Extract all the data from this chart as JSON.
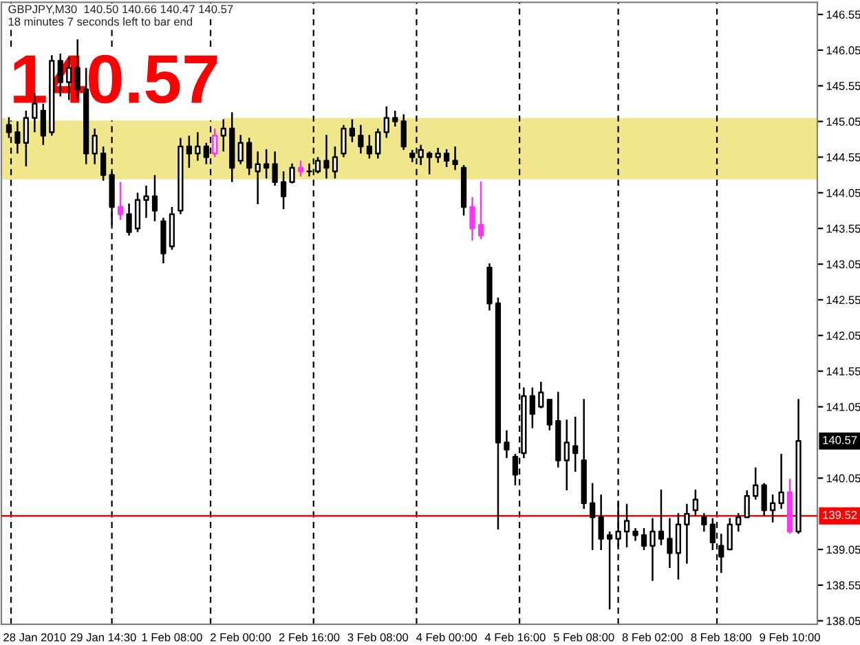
{
  "chart_data": {
    "type": "candlestick",
    "title": "GBPJPY,M30  140.50 140.66 140.47 140.57",
    "subtitle": "18 minutes 7 seconds left to bar end",
    "annotations": [
      "140.57",
      {
        "text": "140.57",
        "y": 140.57
      }
    ],
    "categories": [
      null,
      null,
      null,
      "28 Jan 2010",
      null,
      null,
      null,
      null,
      null,
      null,
      null,
      "29 Jan 14:30",
      null,
      null,
      null,
      null,
      null,
      null,
      null,
      "1 Feb 08:00",
      null,
      null,
      null,
      null,
      null,
      null,
      null,
      "2 Feb 00:00",
      null,
      null,
      null,
      null,
      null,
      null,
      null,
      "2 Feb 16:00",
      null,
      null,
      null,
      null,
      null,
      null,
      null,
      "3 Feb 08:00",
      null,
      null,
      null,
      null,
      null,
      null,
      null,
      "4 Feb 00:00",
      null,
      null,
      null,
      null,
      null,
      null,
      null,
      "4 Feb 16:00",
      null,
      null,
      null,
      null,
      null,
      null,
      null,
      "5 Feb 08:00",
      null,
      null,
      null,
      null,
      null,
      null,
      null,
      "8 Feb 02:00",
      null,
      null,
      null,
      null,
      null,
      null,
      null,
      "8 Feb 18:00",
      null,
      null,
      null,
      null,
      null,
      null,
      null,
      "9 Feb 10:00",
      null
    ],
    "ohlc": [
      [
        145.0,
        145.11,
        144.82,
        144.9
      ],
      [
        144.9,
        145.05,
        144.6,
        144.75
      ],
      [
        144.75,
        145.2,
        144.42,
        145.1
      ],
      [
        145.1,
        145.45,
        144.9,
        145.3
      ],
      [
        145.2,
        145.3,
        144.72,
        144.85
      ],
      [
        144.9,
        145.98,
        144.85,
        145.9
      ],
      [
        145.9,
        146.0,
        145.4,
        145.6
      ],
      [
        145.6,
        145.95,
        145.35,
        145.8
      ],
      [
        145.8,
        146.2,
        145.35,
        145.5
      ],
      [
        145.5,
        145.8,
        144.45,
        144.6
      ],
      [
        144.6,
        144.95,
        144.45,
        144.85
      ],
      [
        144.6,
        144.7,
        144.22,
        144.3
      ],
      [
        144.3,
        144.35,
        143.6,
        143.85
      ],
      [
        143.85,
        144.2,
        143.67,
        143.75
      ],
      [
        143.75,
        143.9,
        143.45,
        143.5
      ],
      [
        143.55,
        144.05,
        143.5,
        143.95
      ],
      [
        143.95,
        144.15,
        143.7,
        144.0
      ],
      [
        144.0,
        144.3,
        143.65,
        143.8
      ],
      [
        143.65,
        143.7,
        143.06,
        143.2
      ],
      [
        143.3,
        143.85,
        143.25,
        143.75
      ],
      [
        143.8,
        144.82,
        143.75,
        144.7
      ],
      [
        144.7,
        144.85,
        144.4,
        144.6
      ],
      [
        144.6,
        144.9,
        144.5,
        144.7
      ],
      [
        144.7,
        144.75,
        144.45,
        144.55
      ],
      [
        144.6,
        144.95,
        144.55,
        144.85
      ],
      [
        144.85,
        145.08,
        144.63,
        144.95
      ],
      [
        144.95,
        145.18,
        144.2,
        144.4
      ],
      [
        144.5,
        144.86,
        144.45,
        144.75
      ],
      [
        144.75,
        144.82,
        144.3,
        144.4
      ],
      [
        144.35,
        144.63,
        143.89,
        144.45
      ],
      [
        144.45,
        144.66,
        144.25,
        144.4
      ],
      [
        144.45,
        144.63,
        144.15,
        144.2
      ],
      [
        144.2,
        144.35,
        143.82,
        144.0
      ],
      [
        144.2,
        144.46,
        144.18,
        144.4
      ],
      [
        144.4,
        144.5,
        144.28,
        144.35
      ],
      [
        144.35,
        144.46,
        144.28,
        144.35
      ],
      [
        144.35,
        144.55,
        144.32,
        144.5
      ],
      [
        144.5,
        144.86,
        144.25,
        144.4
      ],
      [
        144.35,
        144.7,
        144.25,
        144.55
      ],
      [
        144.6,
        145.0,
        144.55,
        144.95
      ],
      [
        144.95,
        145.08,
        144.76,
        144.85
      ],
      [
        144.85,
        145.0,
        144.6,
        144.7
      ],
      [
        144.7,
        144.86,
        144.53,
        144.6
      ],
      [
        144.6,
        144.95,
        144.53,
        144.9
      ],
      [
        144.9,
        145.26,
        144.82,
        145.1
      ],
      [
        145.1,
        145.2,
        144.98,
        145.05
      ],
      [
        145.05,
        145.15,
        144.65,
        144.7
      ],
      [
        144.6,
        144.65,
        144.48,
        144.55
      ],
      [
        144.55,
        144.72,
        144.44,
        144.65
      ],
      [
        144.6,
        144.63,
        144.31,
        144.55
      ],
      [
        144.55,
        144.68,
        144.47,
        144.6
      ],
      [
        144.6,
        144.66,
        144.41,
        144.5
      ],
      [
        144.5,
        144.7,
        144.37,
        144.45
      ],
      [
        144.4,
        144.44,
        143.73,
        143.85
      ],
      [
        143.85,
        143.99,
        143.38,
        143.55
      ],
      [
        143.6,
        144.21,
        143.4,
        143.45
      ],
      [
        143.0,
        143.06,
        142.4,
        142.5
      ],
      [
        142.5,
        142.58,
        139.33,
        140.55
      ],
      [
        140.55,
        140.72,
        140.33,
        140.45
      ],
      [
        140.35,
        140.39,
        139.95,
        140.1
      ],
      [
        140.4,
        141.32,
        140.33,
        141.2
      ],
      [
        141.2,
        141.32,
        140.75,
        140.95
      ],
      [
        141.05,
        141.4,
        141.03,
        141.25
      ],
      [
        141.15,
        141.16,
        140.72,
        140.8
      ],
      [
        140.85,
        141.26,
        140.2,
        140.3
      ],
      [
        140.3,
        140.87,
        139.88,
        140.55
      ],
      [
        140.5,
        140.91,
        140.14,
        140.4
      ],
      [
        140.3,
        141.16,
        139.62,
        139.7
      ],
      [
        139.7,
        139.98,
        139.04,
        139.5
      ],
      [
        139.5,
        139.82,
        139.04,
        139.2
      ],
      [
        139.25,
        139.3,
        138.21,
        139.2
      ],
      [
        139.2,
        139.72,
        139.08,
        139.3
      ],
      [
        139.3,
        139.69,
        139.08,
        139.45
      ],
      [
        139.3,
        139.35,
        139.17,
        139.25
      ],
      [
        139.25,
        139.35,
        139.04,
        139.1
      ],
      [
        139.1,
        139.49,
        138.61,
        139.3
      ],
      [
        139.3,
        139.89,
        139.11,
        139.2
      ],
      [
        139.2,
        139.49,
        138.79,
        139.0
      ],
      [
        139.0,
        139.56,
        138.63,
        139.4
      ],
      [
        139.4,
        139.69,
        138.85,
        139.55
      ],
      [
        139.6,
        139.89,
        139.52,
        139.75
      ],
      [
        139.5,
        139.56,
        139.3,
        139.4
      ],
      [
        139.4,
        139.49,
        139.04,
        139.15
      ],
      [
        139.1,
        139.27,
        138.72,
        138.95
      ],
      [
        139.05,
        139.49,
        139.04,
        139.4
      ],
      [
        139.4,
        139.56,
        139.3,
        139.5
      ],
      [
        139.5,
        139.88,
        139.49,
        139.8
      ],
      [
        139.8,
        140.2,
        139.75,
        139.95
      ],
      [
        139.95,
        139.98,
        139.52,
        139.6
      ],
      [
        139.6,
        139.82,
        139.43,
        139.7
      ],
      [
        139.7,
        140.39,
        139.62,
        139.85
      ],
      [
        139.85,
        140.04,
        139.27,
        139.3
      ],
      [
        139.3,
        141.16,
        139.27,
        140.57
      ]
    ],
    "colors": [
      "#000000",
      "#000000",
      "#000000",
      "#000000",
      "#000000",
      "#000000",
      "#000000",
      "#000000",
      "#000000",
      "#000000",
      "#000000",
      "#000000",
      "#000000",
      "#ff33ff",
      "#000000",
      "#000000",
      "#000000",
      "#000000",
      "#000000",
      "#000000",
      "#000000",
      "#000000",
      "#000000",
      "#000000",
      "#ff33ff",
      "#000000",
      "#000000",
      "#000000",
      "#000000",
      "#000000",
      "#000000",
      "#000000",
      "#000000",
      "#000000",
      "#ff33ff",
      "#000000",
      "#000000",
      "#000000",
      "#000000",
      "#000000",
      "#000000",
      "#000000",
      "#000000",
      "#000000",
      "#000000",
      "#000000",
      "#000000",
      "#000000",
      "#000000",
      "#000000",
      "#000000",
      "#000000",
      "#000000",
      "#000000",
      "#ff33ff",
      "#ff33ff",
      "#000000",
      "#000000",
      "#000000",
      "#000000",
      "#000000",
      "#000000",
      "#000000",
      "#000000",
      "#000000",
      "#000000",
      "#000000",
      "#000000",
      "#000000",
      "#000000",
      "#000000",
      "#000000",
      "#000000",
      "#000000",
      "#000000",
      "#000000",
      "#000000",
      "#000000",
      "#000000",
      "#000000",
      "#000000",
      "#000000",
      "#000000",
      "#000000",
      "#000000",
      "#000000",
      "#000000",
      "#000000",
      "#000000",
      "#000000",
      "#000000",
      "#ff33ff",
      "#000000"
    ],
    "ylim": [
      138.0,
      146.72
    ],
    "yticks": [
      138.05,
      138.55,
      139.05,
      140.05,
      141.05,
      141.55,
      142.05,
      142.55,
      143.05,
      143.55,
      144.05,
      144.55,
      145.05,
      145.55,
      146.05,
      146.55
    ],
    "ref_lines": [
      {
        "axis": "y",
        "value": 139.52,
        "label": "139.52",
        "color": "#ff0000"
      }
    ],
    "bands": [
      {
        "axis": "y",
        "from": 144.24,
        "to": 145.1,
        "color": "#f0e68c"
      }
    ]
  }
}
